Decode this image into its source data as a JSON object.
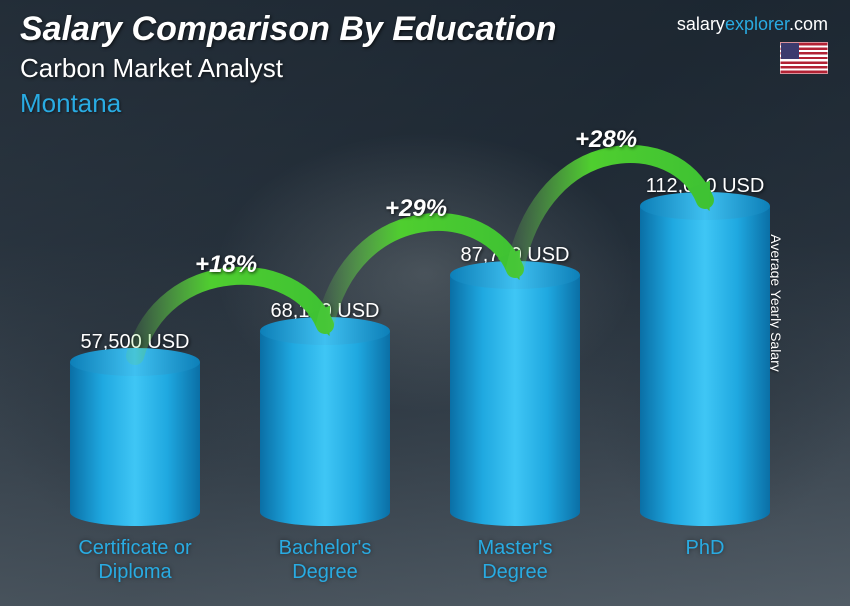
{
  "header": {
    "title": "Salary Comparison By Education",
    "subtitle": "Carbon Market Analyst",
    "location": "Montana"
  },
  "brand": {
    "part1": "salary",
    "part2": "explorer",
    "part3": ".com"
  },
  "axis_label": "Average Yearly Salary",
  "chart": {
    "type": "bar",
    "bar_color": "#1fa8e0",
    "bar_highlight": "#3fc6f5",
    "label_color": "#29abe2",
    "text_color": "#ffffff",
    "arc_color": "#3fc233",
    "max_value": 112000,
    "bar_area_height": 320,
    "bars": [
      {
        "category": "Certificate or Diploma",
        "value": 57500,
        "value_label": "57,500 USD"
      },
      {
        "category": "Bachelor's Degree",
        "value": 68100,
        "value_label": "68,100 USD"
      },
      {
        "category": "Master's Degree",
        "value": 87700,
        "value_label": "87,700 USD"
      },
      {
        "category": "PhD",
        "value": 112000,
        "value_label": "112,000 USD"
      }
    ],
    "deltas": [
      {
        "label": "+18%"
      },
      {
        "label": "+29%"
      },
      {
        "label": "+28%"
      }
    ]
  }
}
